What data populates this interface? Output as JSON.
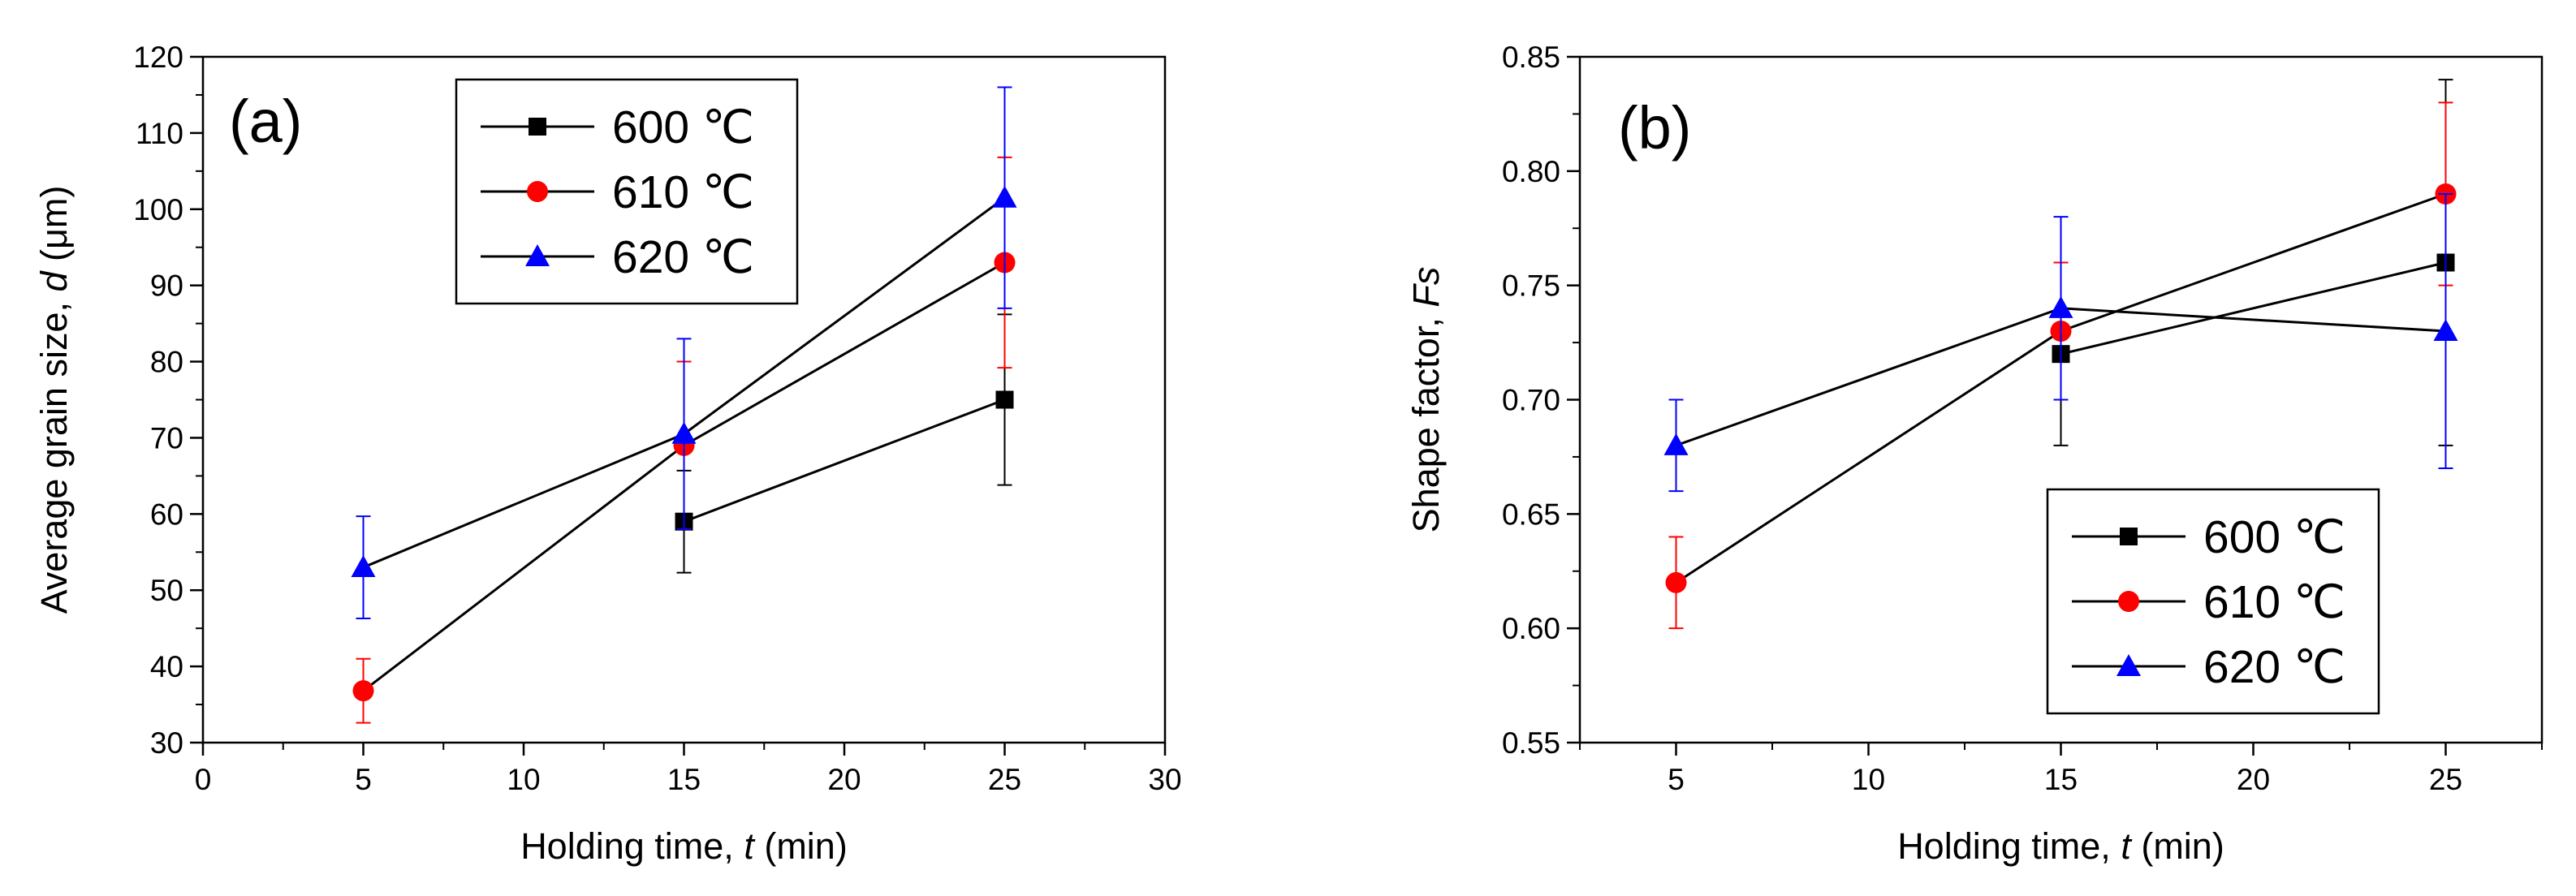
{
  "chart_data": [
    {
      "type": "line",
      "panel_label": "(a)",
      "xlabel": {
        "prefix": "Holding time, ",
        "italic": "t",
        "suffix": " (min)"
      },
      "ylabel": {
        "prefix": "Average grain size, ",
        "italic": "d",
        "suffix": " (μm)"
      },
      "xlim": [
        0,
        30
      ],
      "ylim": [
        30,
        120
      ],
      "xticks": [
        0,
        5,
        10,
        15,
        20,
        25,
        30
      ],
      "xtick_labels": [
        "0",
        "5",
        "10",
        "15",
        "20",
        "25",
        "30"
      ],
      "yticks": [
        30,
        40,
        50,
        60,
        70,
        80,
        90,
        100,
        110,
        120
      ],
      "ytick_labels": [
        "30",
        "40",
        "50",
        "60",
        "70",
        "80",
        "90",
        "100",
        "110",
        "120"
      ],
      "grid": false,
      "legend": {
        "position": "top-left",
        "entries": [
          "600 ℃",
          "610 ℃",
          "620 ℃"
        ]
      },
      "x": [
        5,
        15,
        25
      ],
      "series": [
        {
          "name": "600 ℃",
          "marker": "square",
          "color": "#000000",
          "points": [
            {
              "x": 15,
              "y": 59,
              "err": 6.7
            },
            {
              "x": 25,
              "y": 75,
              "err": 11.2
            }
          ]
        },
        {
          "name": "610 ℃",
          "marker": "circle",
          "color": "#ff0000",
          "points": [
            {
              "x": 5,
              "y": 36.8,
              "err": 4.2
            },
            {
              "x": 15,
              "y": 69,
              "err": 11
            },
            {
              "x": 25,
              "y": 93,
              "err": 13.8
            }
          ]
        },
        {
          "name": "620 ℃",
          "marker": "triangle",
          "color": "#0000ff",
          "points": [
            {
              "x": 5,
              "y": 53,
              "err": 6.7
            },
            {
              "x": 15,
              "y": 70.5,
              "err": 12.5
            },
            {
              "x": 25,
              "y": 101.5,
              "err": 14.5
            }
          ]
        }
      ]
    },
    {
      "type": "line",
      "panel_label": "(b)",
      "xlabel": {
        "prefix": "Holding time, ",
        "italic": "t",
        "suffix": " (min)"
      },
      "ylabel": {
        "prefix": "Shape factor, ",
        "italic": "Fs",
        "suffix": ""
      },
      "xlim": [
        2.5,
        27.5
      ],
      "ylim": [
        0.55,
        0.85
      ],
      "xticks": [
        5,
        10,
        15,
        20,
        25
      ],
      "xtick_labels": [
        "5",
        "10",
        "15",
        "20",
        "25"
      ],
      "yticks": [
        0.55,
        0.6,
        0.65,
        0.7,
        0.75,
        0.8,
        0.85
      ],
      "ytick_labels": [
        "0.55",
        "0.60",
        "0.65",
        "0.70",
        "0.75",
        "0.80",
        "0.85"
      ],
      "grid": false,
      "legend": {
        "position": "bottom-right",
        "entries": [
          "600 ℃",
          "610 ℃",
          "620 ℃"
        ]
      },
      "x": [
        5,
        15,
        25
      ],
      "series": [
        {
          "name": "600 ℃",
          "marker": "square",
          "color": "#000000",
          "points": [
            {
              "x": 15,
              "y": 0.72,
              "err": 0.04
            },
            {
              "x": 25,
              "y": 0.76,
              "err": 0.08
            }
          ]
        },
        {
          "name": "610 ℃",
          "marker": "circle",
          "color": "#ff0000",
          "points": [
            {
              "x": 5,
              "y": 0.62,
              "err": 0.02
            },
            {
              "x": 15,
              "y": 0.73,
              "err": 0.03
            },
            {
              "x": 25,
              "y": 0.79,
              "err": 0.04
            }
          ]
        },
        {
          "name": "620 ℃",
          "marker": "triangle",
          "color": "#0000ff",
          "points": [
            {
              "x": 5,
              "y": 0.68,
              "err": 0.02
            },
            {
              "x": 15,
              "y": 0.74,
              "err": 0.04
            },
            {
              "x": 25,
              "y": 0.73,
              "err": 0.06
            }
          ]
        }
      ]
    }
  ]
}
